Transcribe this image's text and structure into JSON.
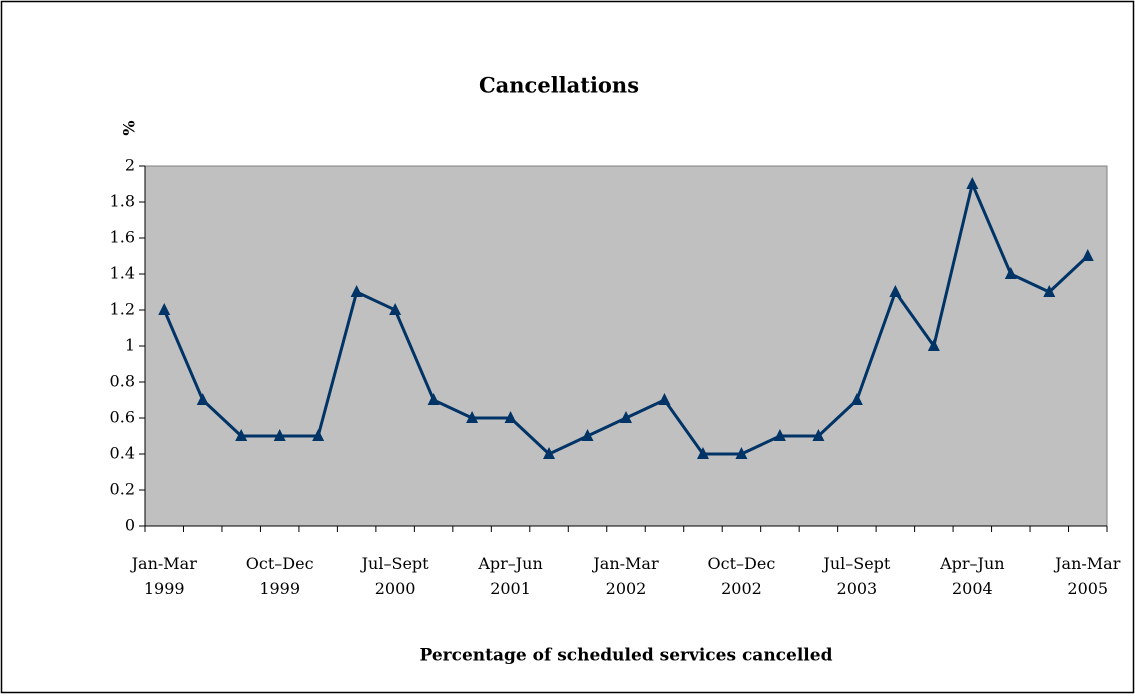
{
  "chart_data": {
    "type": "line",
    "title": "Cancellations",
    "y_label": "%",
    "x_label": "Percentage of scheduled services cancelled",
    "categories": [
      "Jan-Mar 1999",
      null,
      null,
      "Oct–Dec 1999",
      null,
      null,
      "Jul–Sept 2000",
      null,
      null,
      "Apr–Jun 2001",
      null,
      null,
      "Jan-Mar 2002",
      null,
      null,
      "Oct–Dec 2002",
      null,
      null,
      "Jul–Sept 2003",
      null,
      null,
      "Apr–Jun 2004",
      null,
      null,
      "Jan-Mar 2005"
    ],
    "values": [
      1.2,
      0.7,
      0.5,
      0.5,
      0.5,
      1.3,
      1.2,
      0.7,
      0.6,
      0.6,
      0.4,
      0.5,
      0.6,
      0.7,
      0.4,
      0.4,
      0.5,
      0.5,
      0.7,
      1.3,
      1.0,
      1.9,
      1.4,
      1.3,
      1.5
    ],
    "color": "#003366",
    "plot_background": "#c0c0c0",
    "ylim": [
      0,
      2
    ],
    "yticks": [
      0,
      0.2,
      0.4,
      0.6,
      0.8,
      1,
      1.2,
      1.4,
      1.6,
      1.8,
      2
    ],
    "grid": false
  }
}
